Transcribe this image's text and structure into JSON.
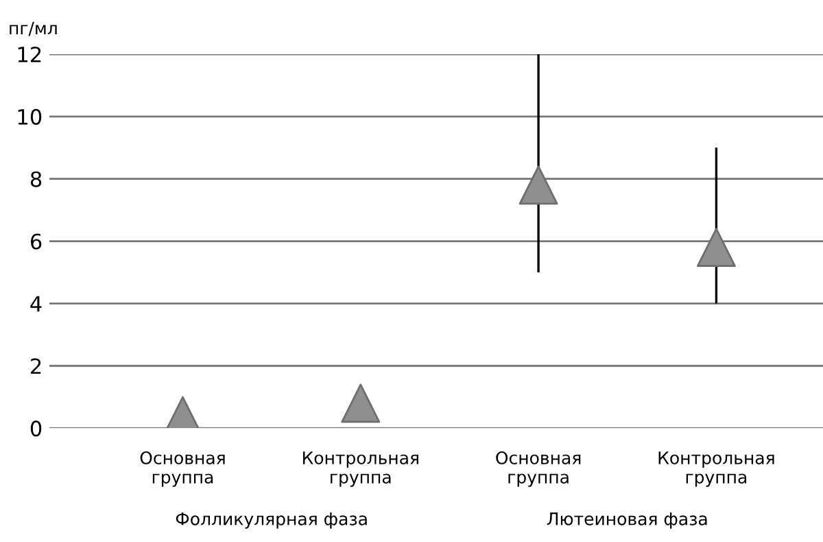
{
  "chart_data": {
    "type": "scatter",
    "ylabel": "пг/мл",
    "categories": [
      "Основная\nгруппа",
      "Контрольная\nгруппа",
      "Основная\nгруппа",
      "Контрольная\nгруппа"
    ],
    "series": [
      {
        "color": "#8f8f8f",
        "values": [
          0.4,
          0.8,
          7.8,
          5.8
        ],
        "errors": [
          null,
          null,
          [
            5,
            12
          ],
          [
            4,
            9
          ]
        ]
      }
    ],
    "annotations": [
      "Фолликулярная фаза",
      "Лютеиновая фаза"
    ],
    "ylim": [
      0,
      12
    ],
    "yticks": [
      0,
      2,
      4,
      6,
      8,
      10,
      12
    ],
    "grid": "y",
    "marker": "triangle",
    "legend": false
  }
}
